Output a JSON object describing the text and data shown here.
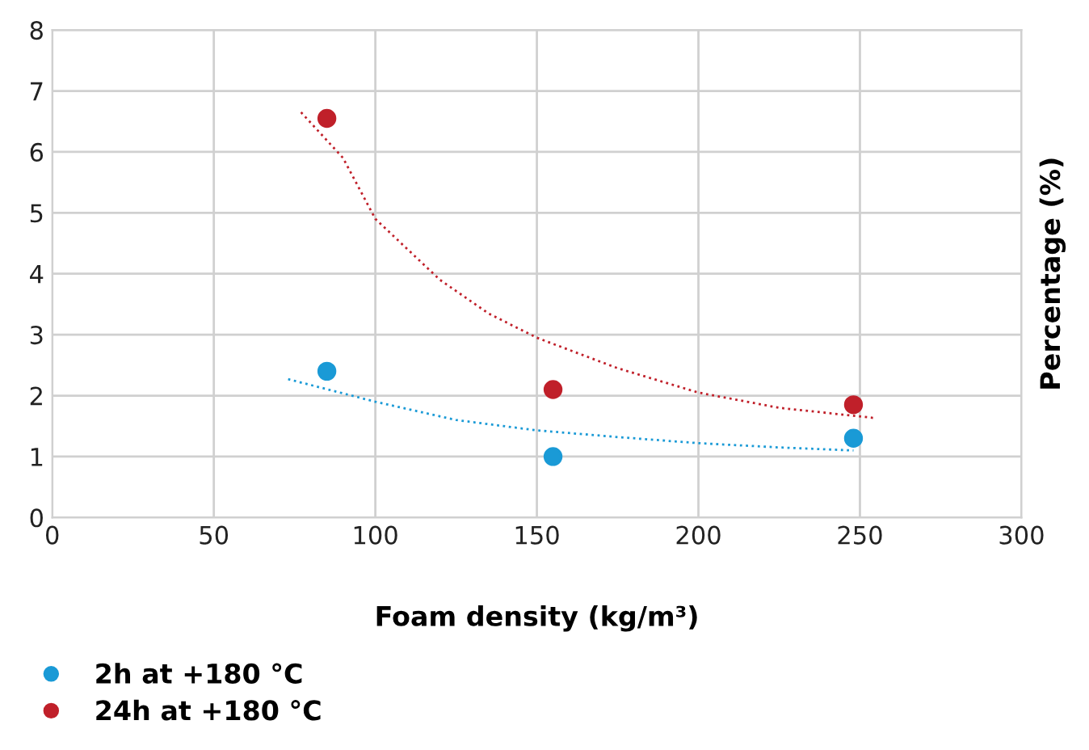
{
  "chart_data": {
    "type": "scatter",
    "xlabel": "Foam density (kg/m³)",
    "ylabel": "Percentage (%)",
    "xlim": [
      0,
      300
    ],
    "xticks": [
      0,
      50,
      100,
      150,
      200,
      250,
      300
    ],
    "ylim": [
      0,
      8
    ],
    "yticks": [
      0,
      1,
      2,
      3,
      4,
      5,
      6,
      7,
      8
    ],
    "grid": true,
    "legend": "bottom left",
    "series": [
      {
        "name": "2h at +180 °C",
        "marker": "circle",
        "color": "#1a9ad6",
        "x": [
          85,
          155,
          248
        ],
        "values": [
          2.4,
          1.0,
          1.3
        ]
      },
      {
        "name": "24h at +180 °C",
        "marker": "circle",
        "color": "#c0202a",
        "x": [
          85,
          155,
          248
        ],
        "values": [
          6.55,
          2.1,
          1.85
        ]
      },
      {
        "type": "line",
        "line_style": "dotted",
        "color": "#1a9ad6",
        "x": [
          73,
          100,
          125,
          150,
          175,
          200,
          225,
          248
        ],
        "values": [
          2.27,
          1.9,
          1.6,
          1.43,
          1.32,
          1.22,
          1.15,
          1.1
        ]
      },
      {
        "type": "line",
        "line_style": "dotted",
        "color": "#c0202a",
        "x": [
          77,
          90,
          100,
          120,
          135,
          150,
          175,
          200,
          225,
          255
        ],
        "values": [
          6.65,
          5.9,
          4.9,
          3.9,
          3.35,
          2.95,
          2.45,
          2.05,
          1.8,
          1.63
        ]
      }
    ]
  }
}
